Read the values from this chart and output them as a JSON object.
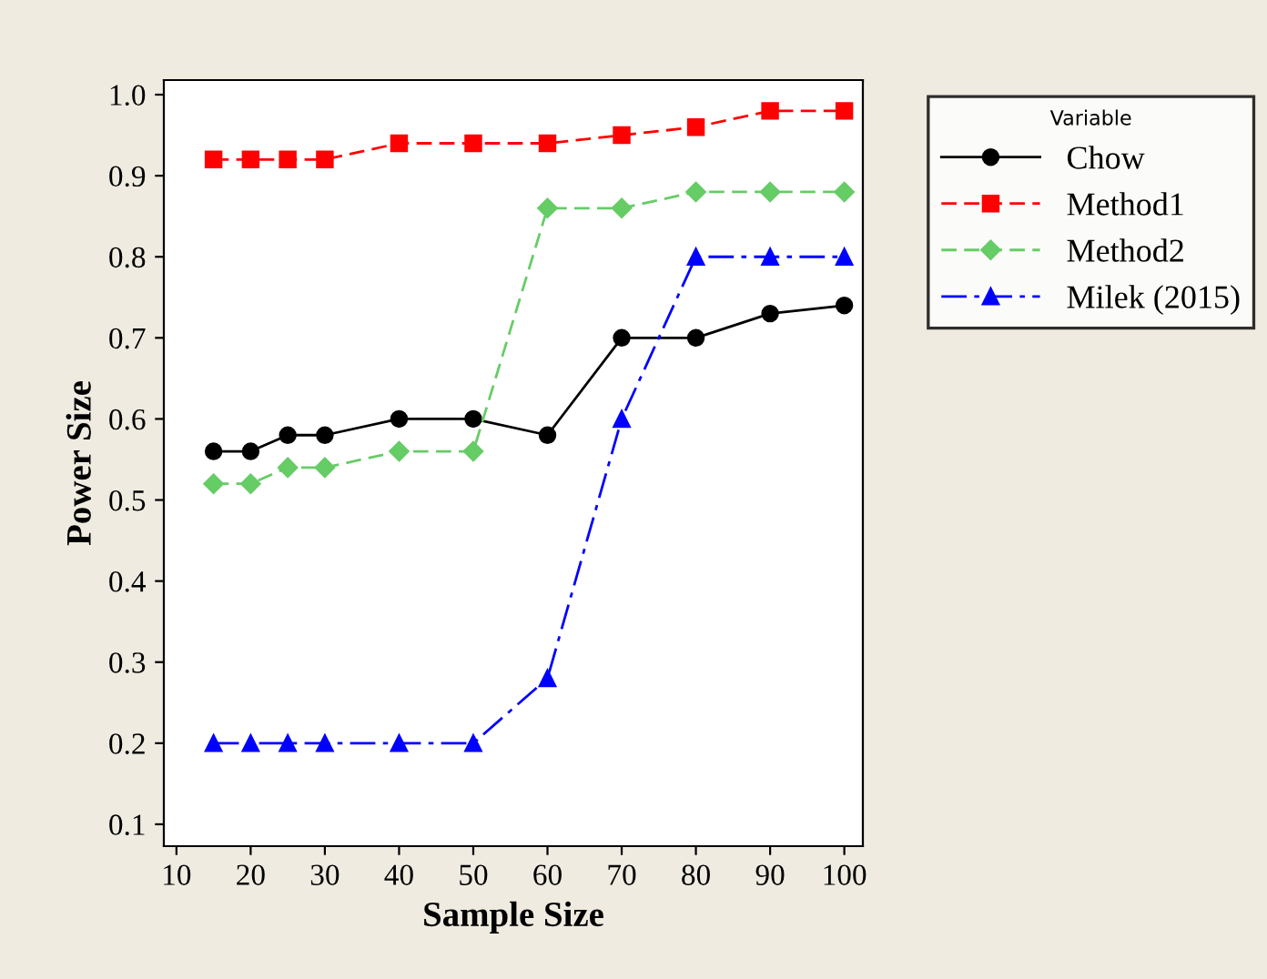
{
  "chart_data": {
    "type": "line",
    "xlabel": "Sample Size",
    "ylabel": "Power Size",
    "legend_title": "Variable",
    "legend": "right",
    "grid": false,
    "x": [
      15,
      20,
      25,
      30,
      40,
      50,
      60,
      70,
      80,
      90,
      100
    ],
    "xlim": [
      8.3,
      102.5
    ],
    "xticks": [
      10,
      20,
      30,
      40,
      50,
      60,
      70,
      80,
      90,
      100
    ],
    "ylim": [
      0.073,
      1.018
    ],
    "yticks": [
      0.1,
      0.2,
      0.3,
      0.4,
      0.5,
      0.6,
      0.7,
      0.8,
      0.9,
      {
        "value": 1.0,
        "label": "1.0"
      }
    ],
    "series": [
      {
        "name": "Chow",
        "color": "#000000",
        "marker": "circle",
        "line_style": "solid",
        "values": [
          0.56,
          0.56,
          0.58,
          0.58,
          0.6,
          0.6,
          0.58,
          0.7,
          0.7,
          0.73,
          0.74
        ]
      },
      {
        "name": "Method1",
        "color": "#ff0000",
        "marker": "square",
        "line_style": "dashed",
        "values": [
          0.92,
          0.92,
          0.92,
          0.92,
          0.94,
          0.94,
          0.94,
          0.95,
          0.96,
          0.98,
          0.98
        ]
      },
      {
        "name": "Method2",
        "color": "#66cc66",
        "marker": "diamond",
        "line_style": "dashed",
        "values": [
          0.52,
          0.52,
          0.54,
          0.54,
          0.56,
          0.56,
          0.86,
          0.86,
          0.88,
          0.88,
          0.88
        ]
      },
      {
        "name": "Milek (2015)",
        "color": "#0000ff",
        "marker": "triangle",
        "line_style": "dashdot",
        "values": [
          0.2,
          0.2,
          0.2,
          0.2,
          0.2,
          0.2,
          0.28,
          0.6,
          0.8,
          0.8,
          0.8
        ]
      }
    ]
  }
}
